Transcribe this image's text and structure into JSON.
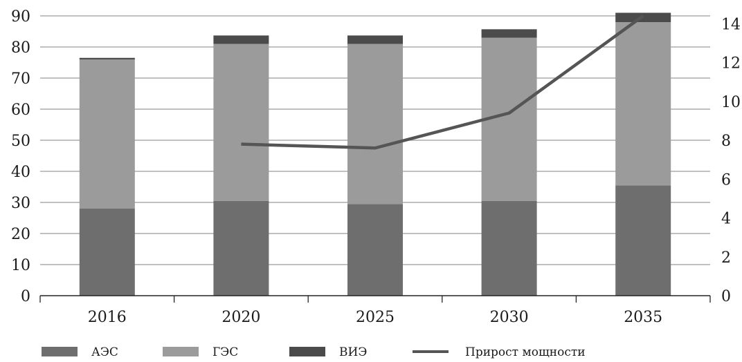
{
  "chart_data": {
    "type": "bar",
    "stacked": true,
    "secondary_axis": true,
    "categories": [
      "2016",
      "2020",
      "2025",
      "2030",
      "2035"
    ],
    "series": [
      {
        "name": "АЭС",
        "type": "bar",
        "values": [
          28,
          30.5,
          29.5,
          30.5,
          35.5
        ],
        "color": "#6e6e6e"
      },
      {
        "name": "ГЭС",
        "type": "bar",
        "values": [
          48,
          50.5,
          51.5,
          52.5,
          52.5
        ],
        "color": "#9b9b9b"
      },
      {
        "name": "ВИЭ",
        "type": "bar",
        "values": [
          0.5,
          2.7,
          2.7,
          2.7,
          3.0
        ],
        "color": "#4b4b4b"
      },
      {
        "name": "Прирост мощности",
        "type": "line",
        "axis": "right",
        "values": [
          null,
          7.8,
          7.6,
          9.4,
          14.4
        ],
        "color": "#555555"
      }
    ],
    "y_left": {
      "ylim": [
        0,
        90
      ],
      "ticks": [
        "0",
        "10",
        "20",
        "30",
        "40",
        "50",
        "60",
        "70",
        "80",
        "90"
      ]
    },
    "y_right": {
      "ylim": [
        0,
        14.4
      ],
      "ticks": [
        "0",
        "2",
        "4",
        "6",
        "8",
        "10",
        "12",
        "14"
      ]
    },
    "grid": true,
    "legend_position": "bottom"
  }
}
